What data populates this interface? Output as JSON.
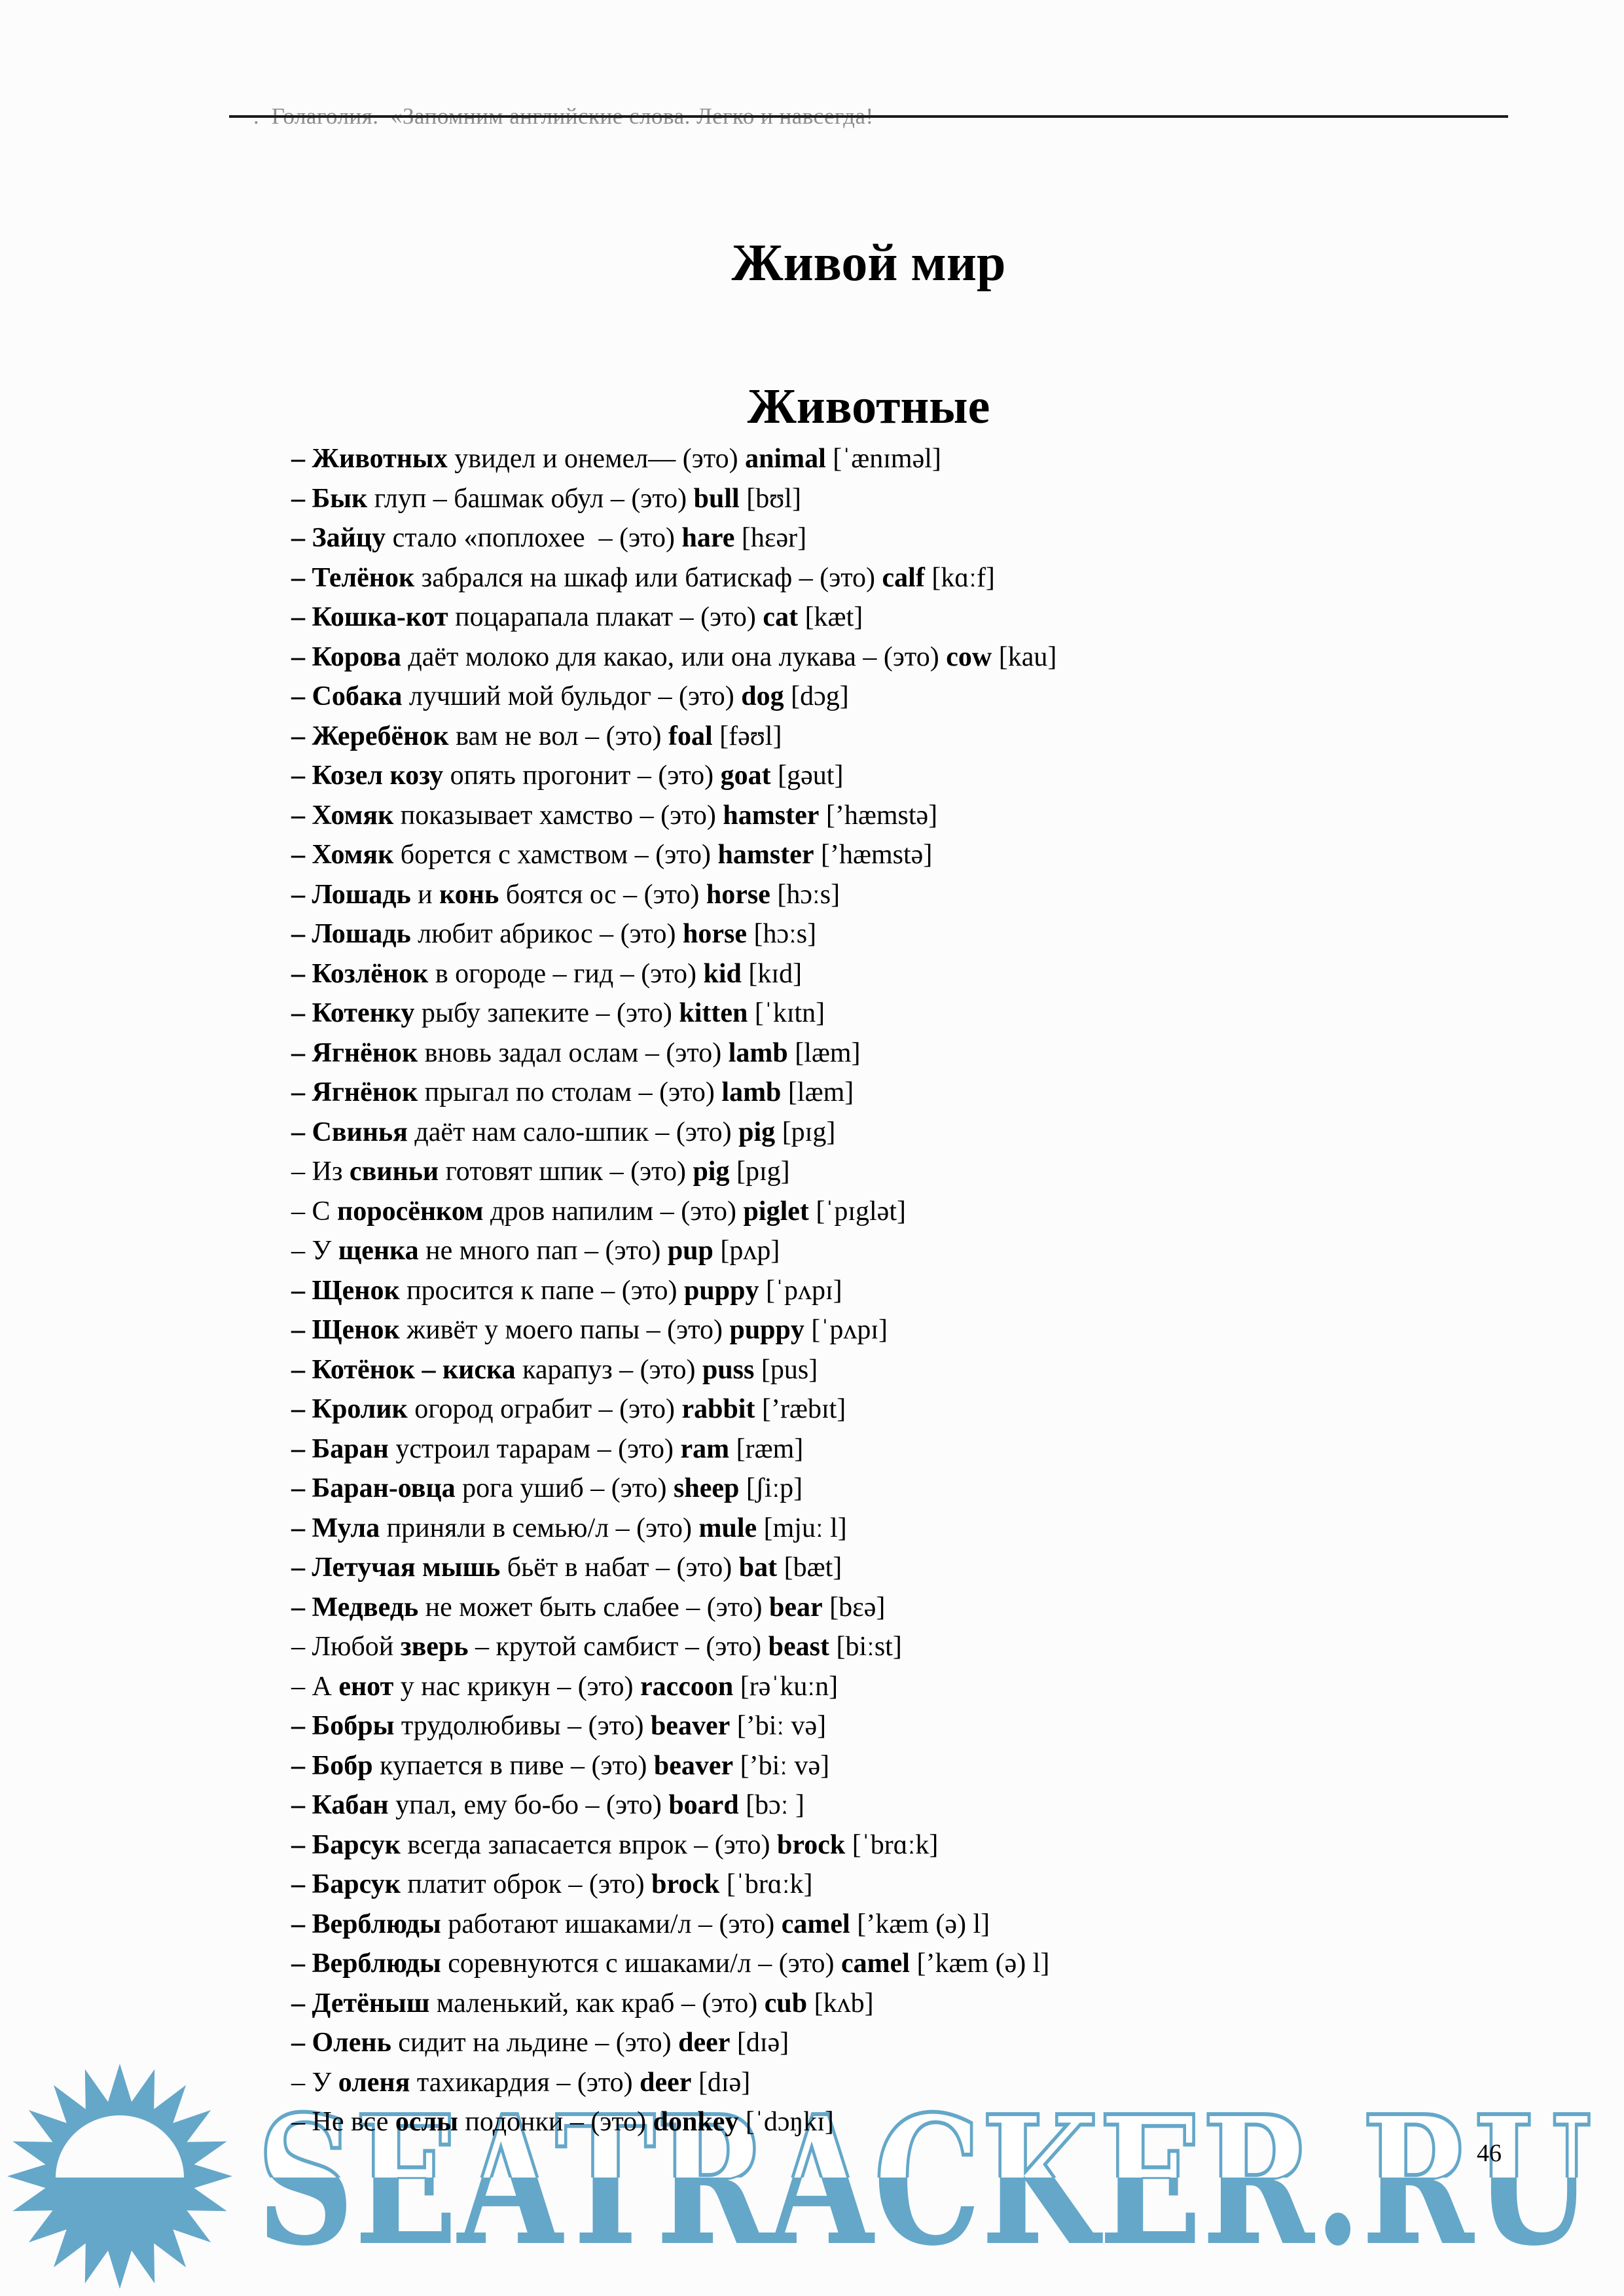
{
  "header": {
    "text": ".  Голаголия.  «Запомним английские слова. Легко и навсегда!"
  },
  "titles": {
    "main": "Живой мир",
    "section": "Животные"
  },
  "list": {
    "items": [
      {
        "parts": [
          {
            "t": "– Животных",
            "b": true
          },
          {
            "t": " увидел и онемел— (это) ",
            "b": false
          },
          {
            "t": "animal",
            "b": true
          },
          {
            "t": " [ˈænɪməl]",
            "b": false
          }
        ]
      },
      {
        "parts": [
          {
            "t": "– Бык",
            "b": true
          },
          {
            "t": " глуп – башмак обул – (это) ",
            "b": false
          },
          {
            "t": "bull",
            "b": true
          },
          {
            "t": " [bʊl]",
            "b": false
          }
        ]
      },
      {
        "parts": [
          {
            "t": "– Зайцу",
            "b": true
          },
          {
            "t": " стало «поплохее  – (это) ",
            "b": false
          },
          {
            "t": "hare",
            "b": true
          },
          {
            "t": " [hɛər]",
            "b": false
          }
        ]
      },
      {
        "parts": [
          {
            "t": "– Телёнок",
            "b": true
          },
          {
            "t": " забрался на шкаф или батискаф – (это) ",
            "b": false
          },
          {
            "t": "calf",
            "b": true
          },
          {
            "t": " [kɑːf]",
            "b": false
          }
        ]
      },
      {
        "parts": [
          {
            "t": "– Кошка-кот",
            "b": true
          },
          {
            "t": " поцарапала плакат – (это) ",
            "b": false
          },
          {
            "t": "cat",
            "b": true
          },
          {
            "t": " [kæt]",
            "b": false
          }
        ]
      },
      {
        "parts": [
          {
            "t": "– Корова",
            "b": true
          },
          {
            "t": " даёт молоко для какао, или она лукава – (это) ",
            "b": false
          },
          {
            "t": "cow",
            "b": true
          },
          {
            "t": " [kau]",
            "b": false
          }
        ]
      },
      {
        "parts": [
          {
            "t": "– Собака",
            "b": true
          },
          {
            "t": " лучший мой бульдог – (это) ",
            "b": false
          },
          {
            "t": "dog",
            "b": true
          },
          {
            "t": " [dɔg]",
            "b": false
          }
        ]
      },
      {
        "parts": [
          {
            "t": "– Жеребёнок",
            "b": true
          },
          {
            "t": " вам не вол – (это) ",
            "b": false
          },
          {
            "t": "foal",
            "b": true
          },
          {
            "t": " [fəʊl]",
            "b": false
          }
        ]
      },
      {
        "parts": [
          {
            "t": "– Козел козу",
            "b": true
          },
          {
            "t": " опять прогонит – (это) ",
            "b": false
          },
          {
            "t": "goat",
            "b": true
          },
          {
            "t": " [gəut]",
            "b": false
          }
        ]
      },
      {
        "parts": [
          {
            "t": "– Хомяк",
            "b": true
          },
          {
            "t": " показывает хамство – (это) ",
            "b": false
          },
          {
            "t": "hamster",
            "b": true
          },
          {
            "t": " [ʼhæmstə]",
            "b": false
          }
        ]
      },
      {
        "parts": [
          {
            "t": "– Хомяк",
            "b": true
          },
          {
            "t": " борется с хамством – (это) ",
            "b": false
          },
          {
            "t": "hamster",
            "b": true
          },
          {
            "t": " [ʼhæmstə]",
            "b": false
          }
        ]
      },
      {
        "parts": [
          {
            "t": "– Лошадь",
            "b": true
          },
          {
            "t": " и ",
            "b": false
          },
          {
            "t": "конь",
            "b": true
          },
          {
            "t": " боятся ос – (это) ",
            "b": false
          },
          {
            "t": "horse",
            "b": true
          },
          {
            "t": " [hɔːs]",
            "b": false
          }
        ]
      },
      {
        "parts": [
          {
            "t": "– Лошадь",
            "b": true
          },
          {
            "t": " любит абрикос – (это) ",
            "b": false
          },
          {
            "t": "horse",
            "b": true
          },
          {
            "t": " [hɔːs]",
            "b": false
          }
        ]
      },
      {
        "parts": [
          {
            "t": "– Козлёнок",
            "b": true
          },
          {
            "t": " в огороде – гид – (это) ",
            "b": false
          },
          {
            "t": "kid",
            "b": true
          },
          {
            "t": " [kɪd]",
            "b": false
          }
        ]
      },
      {
        "parts": [
          {
            "t": "– Котенку",
            "b": true
          },
          {
            "t": " рыбу запеките – (это) ",
            "b": false
          },
          {
            "t": "kitten",
            "b": true
          },
          {
            "t": " [ˈkɪtn]",
            "b": false
          }
        ]
      },
      {
        "parts": [
          {
            "t": "– Ягнёнок",
            "b": true
          },
          {
            "t": " вновь задал ослам – (это) ",
            "b": false
          },
          {
            "t": "lamb",
            "b": true
          },
          {
            "t": " [læm]",
            "b": false
          }
        ]
      },
      {
        "parts": [
          {
            "t": "– Ягнёнок",
            "b": true
          },
          {
            "t": " прыгал по столам – (это) ",
            "b": false
          },
          {
            "t": "lamb",
            "b": true
          },
          {
            "t": " [læm]",
            "b": false
          }
        ]
      },
      {
        "parts": [
          {
            "t": "– Свинья",
            "b": true
          },
          {
            "t": " даёт нам сало-шпик – (это) ",
            "b": false
          },
          {
            "t": "pig",
            "b": true
          },
          {
            "t": " [pɪg]",
            "b": false
          }
        ]
      },
      {
        "parts": [
          {
            "t": "– Из ",
            "b": false
          },
          {
            "t": "свиньи",
            "b": true
          },
          {
            "t": " готовят шпик – (это) ",
            "b": false
          },
          {
            "t": "pig",
            "b": true
          },
          {
            "t": " [pɪg]",
            "b": false
          }
        ]
      },
      {
        "parts": [
          {
            "t": "– С ",
            "b": false
          },
          {
            "t": "поросёнком",
            "b": true
          },
          {
            "t": " дров напилим – (это) ",
            "b": false
          },
          {
            "t": "piglet",
            "b": true
          },
          {
            "t": " [ˈpɪglət]",
            "b": false
          }
        ]
      },
      {
        "parts": [
          {
            "t": "– У ",
            "b": false
          },
          {
            "t": "щенка",
            "b": true
          },
          {
            "t": " не много пап – (это) ",
            "b": false
          },
          {
            "t": "pup",
            "b": true
          },
          {
            "t": " [pʌp]",
            "b": false
          }
        ]
      },
      {
        "parts": [
          {
            "t": "– Щенок",
            "b": true
          },
          {
            "t": " просится к папе – (это) ",
            "b": false
          },
          {
            "t": "puppy",
            "b": true
          },
          {
            "t": " [ˈpʌpɪ]",
            "b": false
          }
        ]
      },
      {
        "parts": [
          {
            "t": "– Щенок",
            "b": true
          },
          {
            "t": " живёт у моего папы – (это) ",
            "b": false
          },
          {
            "t": "puppy",
            "b": true
          },
          {
            "t": " [ˈpʌpɪ]",
            "b": false
          }
        ]
      },
      {
        "parts": [
          {
            "t": "– Котёнок – киска",
            "b": true
          },
          {
            "t": " карапуз – (это) ",
            "b": false
          },
          {
            "t": "puss",
            "b": true
          },
          {
            "t": " [pus]",
            "b": false
          }
        ]
      },
      {
        "parts": [
          {
            "t": "– Кролик",
            "b": true
          },
          {
            "t": " огород ограбит – (это) ",
            "b": false
          },
          {
            "t": "rabbit",
            "b": true
          },
          {
            "t": " [ʼræbɪt]",
            "b": false
          }
        ]
      },
      {
        "parts": [
          {
            "t": "– Баран",
            "b": true
          },
          {
            "t": " устроил тарарам – (это) ",
            "b": false
          },
          {
            "t": "ram",
            "b": true
          },
          {
            "t": " [ræm]",
            "b": false
          }
        ]
      },
      {
        "parts": [
          {
            "t": "– Баран-овца",
            "b": true
          },
          {
            "t": " рога ушиб – (это) ",
            "b": false
          },
          {
            "t": "sheep",
            "b": true
          },
          {
            "t": " [ʃiːp]",
            "b": false
          }
        ]
      },
      {
        "parts": [
          {
            "t": "– Мула",
            "b": true
          },
          {
            "t": " приняли в семью/л – (это) ",
            "b": false
          },
          {
            "t": "mule",
            "b": true
          },
          {
            "t": " [mjuː l]",
            "b": false
          }
        ]
      },
      {
        "parts": [
          {
            "t": "– Летучая мышь",
            "b": true
          },
          {
            "t": " бьёт в набат – (это) ",
            "b": false
          },
          {
            "t": "bat",
            "b": true
          },
          {
            "t": " [bæt]",
            "b": false
          }
        ]
      },
      {
        "parts": [
          {
            "t": "– Медведь",
            "b": true
          },
          {
            "t": " не может быть слабее – (это) ",
            "b": false
          },
          {
            "t": "bear",
            "b": true
          },
          {
            "t": " [bɛə]",
            "b": false
          }
        ]
      },
      {
        "parts": [
          {
            "t": "– Любой ",
            "b": false
          },
          {
            "t": "зверь",
            "b": true
          },
          {
            "t": " – крутой самбист – (это) ",
            "b": false
          },
          {
            "t": "beast",
            "b": true
          },
          {
            "t": " [biːst]",
            "b": false
          }
        ]
      },
      {
        "parts": [
          {
            "t": "– А ",
            "b": false
          },
          {
            "t": "енот",
            "b": true
          },
          {
            "t": " у нас крикун – (это) ",
            "b": false
          },
          {
            "t": "raccoon",
            "b": true
          },
          {
            "t": " [rəˈkuːn]",
            "b": false
          }
        ]
      },
      {
        "parts": [
          {
            "t": "– Бобры",
            "b": true
          },
          {
            "t": " трудолюбивы – (это) ",
            "b": false
          },
          {
            "t": "beaver",
            "b": true
          },
          {
            "t": " [ʼbiː və]",
            "b": false
          }
        ]
      },
      {
        "parts": [
          {
            "t": "– Бобр",
            "b": true
          },
          {
            "t": " купается в пиве – (это) ",
            "b": false
          },
          {
            "t": "beaver",
            "b": true
          },
          {
            "t": " [ʼbiː və]",
            "b": false
          }
        ]
      },
      {
        "parts": [
          {
            "t": "– Кабан",
            "b": true
          },
          {
            "t": " упал, ему бо-бо – (это) ",
            "b": false
          },
          {
            "t": "board",
            "b": true
          },
          {
            "t": " [bɔː ]",
            "b": false
          }
        ]
      },
      {
        "parts": [
          {
            "t": "– Барсук",
            "b": true
          },
          {
            "t": " всегда запасается впрок – (это) ",
            "b": false
          },
          {
            "t": "brock",
            "b": true
          },
          {
            "t": " [ˈbrɑːk]",
            "b": false
          }
        ]
      },
      {
        "parts": [
          {
            "t": "– Барсук",
            "b": true
          },
          {
            "t": " платит оброк – (это) ",
            "b": false
          },
          {
            "t": "brock",
            "b": true
          },
          {
            "t": " [ˈbrɑːk]",
            "b": false
          }
        ]
      },
      {
        "parts": [
          {
            "t": "– Верблюды",
            "b": true
          },
          {
            "t": " работают ишаками/л – (это) ",
            "b": false
          },
          {
            "t": "camel",
            "b": true
          },
          {
            "t": " [ʼkæm (ə) l]",
            "b": false
          }
        ]
      },
      {
        "parts": [
          {
            "t": "– Верблюды",
            "b": true
          },
          {
            "t": " соревнуются с ишаками/л – (это) ",
            "b": false
          },
          {
            "t": "camel",
            "b": true
          },
          {
            "t": " [ʼkæm (ə) l]",
            "b": false
          }
        ]
      },
      {
        "parts": [
          {
            "t": "– Детёныш",
            "b": true
          },
          {
            "t": " маленький, как краб – (это) ",
            "b": false
          },
          {
            "t": "cub",
            "b": true
          },
          {
            "t": " [kʌb]",
            "b": false
          }
        ]
      },
      {
        "parts": [
          {
            "t": "– Олень",
            "b": true
          },
          {
            "t": " сидит на льдине – (это) ",
            "b": false
          },
          {
            "t": "deer",
            "b": true
          },
          {
            "t": " [dɪə]",
            "b": false
          }
        ]
      },
      {
        "parts": [
          {
            "t": "– У ",
            "b": false
          },
          {
            "t": "оленя",
            "b": true
          },
          {
            "t": " тахикардия – (это) ",
            "b": false
          },
          {
            "t": "deer",
            "b": true
          },
          {
            "t": " [dɪə]",
            "b": false
          }
        ]
      },
      {
        "parts": [
          {
            "t": "– Не все ",
            "b": false
          },
          {
            "t": "ослы",
            "b": true
          },
          {
            "t": " подонки – (это) ",
            "b": false
          },
          {
            "t": "donkey",
            "b": true
          },
          {
            "t": " [ˈdɔŋkɪ]",
            "b": false
          }
        ]
      }
    ]
  },
  "watermark": {
    "text": "SEATRACKER.RU",
    "color": "#64a7c9",
    "sun_icon": "sun-sea-logo"
  },
  "page_number": "46"
}
